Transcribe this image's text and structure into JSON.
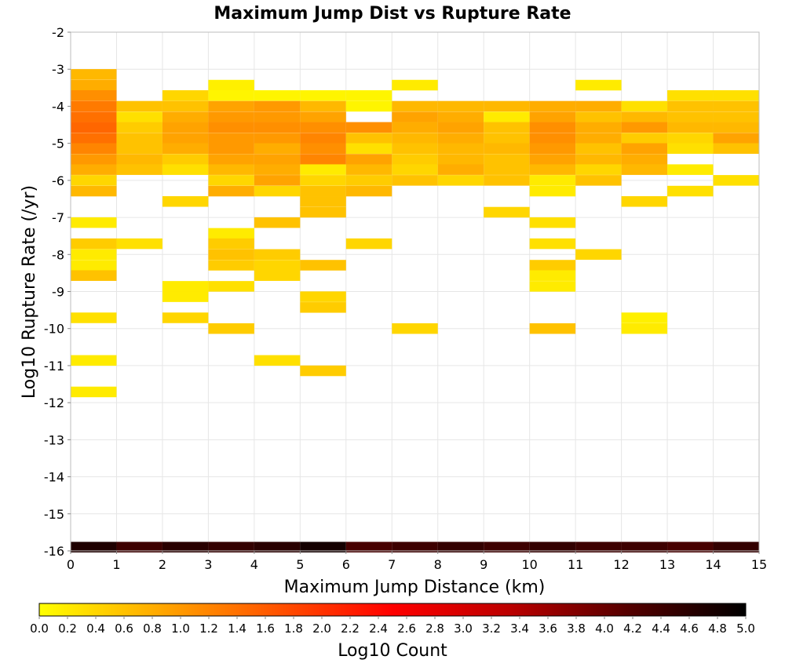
{
  "chart_data": {
    "type": "heatmap",
    "title": "Maximum Jump Dist vs Rupture Rate",
    "xlabel": "Maximum Jump Distance (km)",
    "ylabel": "Log10 Rupture Rate (/yr)",
    "xlim": [
      0,
      15
    ],
    "ylim": [
      -16,
      -2
    ],
    "x_ticks": [
      "0",
      "1",
      "2",
      "3",
      "4",
      "5",
      "6",
      "7",
      "8",
      "9",
      "10",
      "11",
      "12",
      "13",
      "14",
      "15"
    ],
    "y_ticks": [
      "-2",
      "-3",
      "-4",
      "-5",
      "-6",
      "-7",
      "-8",
      "-9",
      "-10",
      "-11",
      "-12",
      "-13",
      "-14",
      "-15",
      "-16"
    ],
    "x_bin_width": 1,
    "y_bin_height": 0.286,
    "grid": true,
    "colorbar": {
      "label": "Log10 Count",
      "range": [
        0,
        5
      ],
      "ticks": [
        "0.0",
        "0.2",
        "0.4",
        "0.6",
        "0.8",
        "1.0",
        "1.2",
        "1.4",
        "1.6",
        "1.8",
        "2.0",
        "2.2",
        "2.4",
        "2.6",
        "2.8",
        "3.0",
        "3.2",
        "3.4",
        "3.6",
        "3.8",
        "4.0",
        "4.2",
        "4.4",
        "4.6",
        "4.8",
        "5.0"
      ],
      "colors": [
        "#ffff00",
        "#ffaa00",
        "#ff5500",
        "#ff0000",
        "#bb0000",
        "#550000",
        "#000000"
      ]
    },
    "cells": [
      {
        "x": 0,
        "y": -3.14,
        "v": 0.7
      },
      {
        "x": 0,
        "y": -3.43,
        "v": 0.8
      },
      {
        "x": 0,
        "y": -3.71,
        "v": 1.1
      },
      {
        "x": 0,
        "y": -4.0,
        "v": 1.3
      },
      {
        "x": 0,
        "y": -4.29,
        "v": 1.4
      },
      {
        "x": 0,
        "y": -4.57,
        "v": 1.5
      },
      {
        "x": 0,
        "y": -4.86,
        "v": 1.4
      },
      {
        "x": 0,
        "y": -5.14,
        "v": 1.2
      },
      {
        "x": 0,
        "y": -5.43,
        "v": 1.0
      },
      {
        "x": 0,
        "y": -5.71,
        "v": 0.8
      },
      {
        "x": 0,
        "y": -6.0,
        "v": 0.4
      },
      {
        "x": 0,
        "y": -6.29,
        "v": 0.7
      },
      {
        "x": 0,
        "y": -7.14,
        "v": 0.2
      },
      {
        "x": 0,
        "y": -7.71,
        "v": 0.5
      },
      {
        "x": 0,
        "y": -8.0,
        "v": 0.2
      },
      {
        "x": 0,
        "y": -8.29,
        "v": 0.2
      },
      {
        "x": 0,
        "y": -8.57,
        "v": 0.6
      },
      {
        "x": 0,
        "y": -9.71,
        "v": 0.3
      },
      {
        "x": 0,
        "y": -10.86,
        "v": 0.2
      },
      {
        "x": 0,
        "y": -11.71,
        "v": 0.2
      },
      {
        "x": 0,
        "y": -15.9,
        "v": 4.7
      },
      {
        "x": 1,
        "y": -4.0,
        "v": 0.6
      },
      {
        "x": 1,
        "y": -4.29,
        "v": 0.3
      },
      {
        "x": 1,
        "y": -4.57,
        "v": 0.5
      },
      {
        "x": 1,
        "y": -4.86,
        "v": 0.6
      },
      {
        "x": 1,
        "y": -5.14,
        "v": 0.6
      },
      {
        "x": 1,
        "y": -5.43,
        "v": 0.7
      },
      {
        "x": 1,
        "y": -5.71,
        "v": 0.6
      },
      {
        "x": 1,
        "y": -7.71,
        "v": 0.3
      },
      {
        "x": 1,
        "y": -15.9,
        "v": 4.4
      },
      {
        "x": 2,
        "y": -3.71,
        "v": 0.4
      },
      {
        "x": 2,
        "y": -4.0,
        "v": 0.6
      },
      {
        "x": 2,
        "y": -4.29,
        "v": 0.8
      },
      {
        "x": 2,
        "y": -4.57,
        "v": 0.9
      },
      {
        "x": 2,
        "y": -4.86,
        "v": 0.9
      },
      {
        "x": 2,
        "y": -5.14,
        "v": 0.8
      },
      {
        "x": 2,
        "y": -5.43,
        "v": 0.5
      },
      {
        "x": 2,
        "y": -5.71,
        "v": 0.3
      },
      {
        "x": 2,
        "y": -6.57,
        "v": 0.4
      },
      {
        "x": 2,
        "y": -8.86,
        "v": 0.2
      },
      {
        "x": 2,
        "y": -9.14,
        "v": 0.2
      },
      {
        "x": 2,
        "y": -9.71,
        "v": 0.4
      },
      {
        "x": 2,
        "y": -15.9,
        "v": 4.6
      },
      {
        "x": 3,
        "y": -3.43,
        "v": 0.15
      },
      {
        "x": 3,
        "y": -3.71,
        "v": 0.1
      },
      {
        "x": 3,
        "y": -4.0,
        "v": 0.9
      },
      {
        "x": 3,
        "y": -4.29,
        "v": 1.0
      },
      {
        "x": 3,
        "y": -4.57,
        "v": 1.1
      },
      {
        "x": 3,
        "y": -4.86,
        "v": 1.0
      },
      {
        "x": 3,
        "y": -5.14,
        "v": 1.0
      },
      {
        "x": 3,
        "y": -5.43,
        "v": 0.9
      },
      {
        "x": 3,
        "y": -5.71,
        "v": 0.7
      },
      {
        "x": 3,
        "y": -6.0,
        "v": 0.4
      },
      {
        "x": 3,
        "y": -6.29,
        "v": 0.8
      },
      {
        "x": 3,
        "y": -7.43,
        "v": 0.2
      },
      {
        "x": 3,
        "y": -7.71,
        "v": 0.5
      },
      {
        "x": 3,
        "y": -8.0,
        "v": 0.6
      },
      {
        "x": 3,
        "y": -8.29,
        "v": 0.5
      },
      {
        "x": 3,
        "y": -8.86,
        "v": 0.3
      },
      {
        "x": 3,
        "y": -10.0,
        "v": 0.5
      },
      {
        "x": 3,
        "y": -15.9,
        "v": 4.5
      },
      {
        "x": 4,
        "y": -3.71,
        "v": 0.1
      },
      {
        "x": 4,
        "y": -4.0,
        "v": 1.0
      },
      {
        "x": 4,
        "y": -4.29,
        "v": 1.0
      },
      {
        "x": 4,
        "y": -4.57,
        "v": 1.1
      },
      {
        "x": 4,
        "y": -4.86,
        "v": 1.0
      },
      {
        "x": 4,
        "y": -5.14,
        "v": 0.8
      },
      {
        "x": 4,
        "y": -5.43,
        "v": 0.9
      },
      {
        "x": 4,
        "y": -5.71,
        "v": 0.8
      },
      {
        "x": 4,
        "y": -6.0,
        "v": 0.9
      },
      {
        "x": 4,
        "y": -6.29,
        "v": 0.4
      },
      {
        "x": 4,
        "y": -7.14,
        "v": 0.6
      },
      {
        "x": 4,
        "y": -8.0,
        "v": 0.5
      },
      {
        "x": 4,
        "y": -8.29,
        "v": 0.4
      },
      {
        "x": 4,
        "y": -8.57,
        "v": 0.4
      },
      {
        "x": 4,
        "y": -10.86,
        "v": 0.3
      },
      {
        "x": 4,
        "y": -15.9,
        "v": 4.6
      },
      {
        "x": 5,
        "y": -3.71,
        "v": 0.1
      },
      {
        "x": 5,
        "y": -4.0,
        "v": 0.7
      },
      {
        "x": 5,
        "y": -4.29,
        "v": 0.9
      },
      {
        "x": 5,
        "y": -4.57,
        "v": 1.1
      },
      {
        "x": 5,
        "y": -4.86,
        "v": 1.2
      },
      {
        "x": 5,
        "y": -5.14,
        "v": 1.1
      },
      {
        "x": 5,
        "y": -5.43,
        "v": 1.2
      },
      {
        "x": 5,
        "y": -5.71,
        "v": 0.2
      },
      {
        "x": 5,
        "y": -6.0,
        "v": 0.4
      },
      {
        "x": 5,
        "y": -6.29,
        "v": 0.6
      },
      {
        "x": 5,
        "y": -6.57,
        "v": 0.6
      },
      {
        "x": 5,
        "y": -6.86,
        "v": 0.6
      },
      {
        "x": 5,
        "y": -8.29,
        "v": 0.6
      },
      {
        "x": 5,
        "y": -9.14,
        "v": 0.4
      },
      {
        "x": 5,
        "y": -9.43,
        "v": 0.5
      },
      {
        "x": 5,
        "y": -11.14,
        "v": 0.5
      },
      {
        "x": 5,
        "y": -15.9,
        "v": 4.8
      },
      {
        "x": 6,
        "y": -3.71,
        "v": 0.1
      },
      {
        "x": 6,
        "y": -4.0,
        "v": 0.1
      },
      {
        "x": 6,
        "y": -4.57,
        "v": 1.1
      },
      {
        "x": 6,
        "y": -4.86,
        "v": 0.6
      },
      {
        "x": 6,
        "y": -5.14,
        "v": 0.3
      },
      {
        "x": 6,
        "y": -5.43,
        "v": 0.9
      },
      {
        "x": 6,
        "y": -5.71,
        "v": 0.7
      },
      {
        "x": 6,
        "y": -6.0,
        "v": 0.5
      },
      {
        "x": 6,
        "y": -6.29,
        "v": 0.7
      },
      {
        "x": 6,
        "y": -7.71,
        "v": 0.4
      },
      {
        "x": 6,
        "y": -15.9,
        "v": 4.3
      },
      {
        "x": 7,
        "y": -3.43,
        "v": 0.2
      },
      {
        "x": 7,
        "y": -4.0,
        "v": 0.7
      },
      {
        "x": 7,
        "y": -4.29,
        "v": 0.9
      },
      {
        "x": 7,
        "y": -4.57,
        "v": 0.8
      },
      {
        "x": 7,
        "y": -4.86,
        "v": 0.7
      },
      {
        "x": 7,
        "y": -5.14,
        "v": 0.6
      },
      {
        "x": 7,
        "y": -5.43,
        "v": 0.5
      },
      {
        "x": 7,
        "y": -5.71,
        "v": 0.4
      },
      {
        "x": 7,
        "y": -6.0,
        "v": 0.6
      },
      {
        "x": 7,
        "y": -10.0,
        "v": 0.4
      },
      {
        "x": 7,
        "y": -15.9,
        "v": 4.4
      },
      {
        "x": 8,
        "y": -4.0,
        "v": 0.7
      },
      {
        "x": 8,
        "y": -4.29,
        "v": 0.8
      },
      {
        "x": 8,
        "y": -4.57,
        "v": 0.9
      },
      {
        "x": 8,
        "y": -4.86,
        "v": 0.8
      },
      {
        "x": 8,
        "y": -5.14,
        "v": 0.7
      },
      {
        "x": 8,
        "y": -5.43,
        "v": 0.7
      },
      {
        "x": 8,
        "y": -5.71,
        "v": 0.8
      },
      {
        "x": 8,
        "y": -6.0,
        "v": 0.4
      },
      {
        "x": 8,
        "y": -15.9,
        "v": 4.5
      },
      {
        "x": 9,
        "y": -4.0,
        "v": 0.7
      },
      {
        "x": 9,
        "y": -4.29,
        "v": 0.2
      },
      {
        "x": 9,
        "y": -4.57,
        "v": 0.6
      },
      {
        "x": 9,
        "y": -4.86,
        "v": 0.6
      },
      {
        "x": 9,
        "y": -5.14,
        "v": 0.7
      },
      {
        "x": 9,
        "y": -5.43,
        "v": 0.6
      },
      {
        "x": 9,
        "y": -5.71,
        "v": 0.6
      },
      {
        "x": 9,
        "y": -6.0,
        "v": 0.6
      },
      {
        "x": 9,
        "y": -6.86,
        "v": 0.4
      },
      {
        "x": 9,
        "y": -15.9,
        "v": 4.4
      },
      {
        "x": 10,
        "y": -4.0,
        "v": 0.8
      },
      {
        "x": 10,
        "y": -4.29,
        "v": 0.9
      },
      {
        "x": 10,
        "y": -4.57,
        "v": 1.1
      },
      {
        "x": 10,
        "y": -4.86,
        "v": 1.1
      },
      {
        "x": 10,
        "y": -5.14,
        "v": 1.0
      },
      {
        "x": 10,
        "y": -5.43,
        "v": 0.9
      },
      {
        "x": 10,
        "y": -5.71,
        "v": 0.7
      },
      {
        "x": 10,
        "y": -6.0,
        "v": 0.2
      },
      {
        "x": 10,
        "y": -6.29,
        "v": 0.2
      },
      {
        "x": 10,
        "y": -7.14,
        "v": 0.3
      },
      {
        "x": 10,
        "y": -7.71,
        "v": 0.3
      },
      {
        "x": 10,
        "y": -8.29,
        "v": 0.5
      },
      {
        "x": 10,
        "y": -8.57,
        "v": 0.2
      },
      {
        "x": 10,
        "y": -8.86,
        "v": 0.2
      },
      {
        "x": 10,
        "y": -10.0,
        "v": 0.6
      },
      {
        "x": 10,
        "y": -15.9,
        "v": 4.5
      },
      {
        "x": 11,
        "y": -3.43,
        "v": 0.2
      },
      {
        "x": 11,
        "y": -4.0,
        "v": 0.8
      },
      {
        "x": 11,
        "y": -4.29,
        "v": 0.6
      },
      {
        "x": 11,
        "y": -4.57,
        "v": 0.8
      },
      {
        "x": 11,
        "y": -4.86,
        "v": 0.8
      },
      {
        "x": 11,
        "y": -5.14,
        "v": 0.6
      },
      {
        "x": 11,
        "y": -5.43,
        "v": 0.7
      },
      {
        "x": 11,
        "y": -5.71,
        "v": 0.4
      },
      {
        "x": 11,
        "y": -6.0,
        "v": 0.6
      },
      {
        "x": 11,
        "y": -8.0,
        "v": 0.4
      },
      {
        "x": 11,
        "y": -15.9,
        "v": 4.4
      },
      {
        "x": 12,
        "y": -4.0,
        "v": 0.3
      },
      {
        "x": 12,
        "y": -4.29,
        "v": 0.7
      },
      {
        "x": 12,
        "y": -4.57,
        "v": 1.0
      },
      {
        "x": 12,
        "y": -4.86,
        "v": 0.5
      },
      {
        "x": 12,
        "y": -5.14,
        "v": 0.9
      },
      {
        "x": 12,
        "y": -5.43,
        "v": 0.8
      },
      {
        "x": 12,
        "y": -5.71,
        "v": 0.7
      },
      {
        "x": 12,
        "y": -6.57,
        "v": 0.4
      },
      {
        "x": 12,
        "y": -9.71,
        "v": 0.15
      },
      {
        "x": 12,
        "y": -10.0,
        "v": 0.2
      },
      {
        "x": 12,
        "y": -15.9,
        "v": 4.4
      },
      {
        "x": 13,
        "y": -3.71,
        "v": 0.3
      },
      {
        "x": 13,
        "y": -4.0,
        "v": 0.6
      },
      {
        "x": 13,
        "y": -4.29,
        "v": 0.6
      },
      {
        "x": 13,
        "y": -4.57,
        "v": 0.7
      },
      {
        "x": 13,
        "y": -4.86,
        "v": 0.4
      },
      {
        "x": 13,
        "y": -5.14,
        "v": 0.3
      },
      {
        "x": 13,
        "y": -5.71,
        "v": 0.2
      },
      {
        "x": 13,
        "y": -6.29,
        "v": 0.3
      },
      {
        "x": 13,
        "y": -15.9,
        "v": 4.3
      },
      {
        "x": 14,
        "y": -3.71,
        "v": 0.3
      },
      {
        "x": 14,
        "y": -4.0,
        "v": 0.6
      },
      {
        "x": 14,
        "y": -4.29,
        "v": 0.6
      },
      {
        "x": 14,
        "y": -4.57,
        "v": 0.7
      },
      {
        "x": 14,
        "y": -4.86,
        "v": 0.9
      },
      {
        "x": 14,
        "y": -5.14,
        "v": 0.6
      },
      {
        "x": 14,
        "y": -6.0,
        "v": 0.3
      },
      {
        "x": 14,
        "y": -15.9,
        "v": 4.5
      }
    ]
  }
}
